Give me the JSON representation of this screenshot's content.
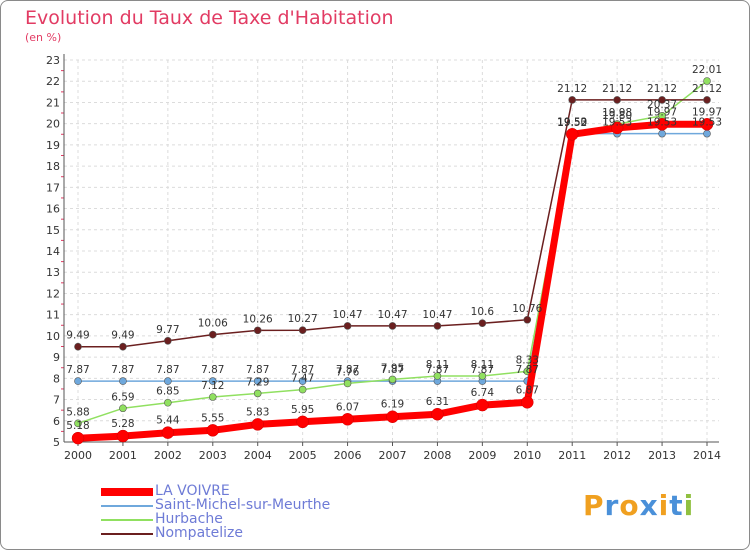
{
  "chart_data": {
    "type": "line",
    "title": "Evolution du Taux de Taxe d'Habitation",
    "unit": "(en %)",
    "x": [
      "2000",
      "2001",
      "2002",
      "2003",
      "2004",
      "2005",
      "2006",
      "2007",
      "2008",
      "2009",
      "2010",
      "2011",
      "2012",
      "2013",
      "2014"
    ],
    "ylim": [
      5,
      23
    ],
    "yticks": [
      5,
      6,
      7,
      8,
      9,
      10,
      11,
      12,
      13,
      14,
      15,
      16,
      17,
      18,
      19,
      20,
      21,
      22,
      23
    ],
    "grid": true,
    "legend_position": "bottom-left",
    "series": [
      {
        "name": "LA VOIVRE",
        "color": "#ff0000",
        "values": [
          5.18,
          5.28,
          5.44,
          5.55,
          5.83,
          5.95,
          6.07,
          6.19,
          6.31,
          6.74,
          6.87,
          19.5,
          19.8,
          19.97,
          19.97
        ],
        "labels": [
          "5.18",
          "5.28",
          "5.44",
          "5.55",
          "5.83",
          "5.95",
          "6.07",
          "6.19",
          "6.31",
          "6.74",
          "6.87",
          "19.50",
          "19.80",
          "19.97",
          "19.97"
        ]
      },
      {
        "name": "Saint-Michel-sur-Meurthe",
        "color": "#6fa8dc",
        "values": [
          7.87,
          7.87,
          7.87,
          7.87,
          7.87,
          7.87,
          7.87,
          7.87,
          7.87,
          7.87,
          7.87,
          19.53,
          19.53,
          19.53,
          19.53
        ],
        "labels": [
          "7.87",
          "7.87",
          "7.87",
          "7.87",
          "7.87",
          "7.87",
          "7.87",
          "7.87",
          "7.87",
          "7.87",
          "7.87",
          "19.53",
          "19.53",
          "19.53",
          "19.53"
        ]
      },
      {
        "name": "Hurbache",
        "color": "#90e060",
        "values": [
          5.88,
          6.59,
          6.85,
          7.12,
          7.29,
          7.47,
          7.76,
          7.95,
          8.11,
          8.11,
          8.33,
          19.52,
          19.98,
          20.37,
          22.01
        ],
        "labels": [
          "5.88",
          "6.59",
          "6.85",
          "7.12",
          "7.29",
          "7.47",
          "7.76",
          "7.95",
          "8.11",
          "8.11",
          "8.33",
          "19.52",
          "19.98",
          "20.37",
          "22.01"
        ]
      },
      {
        "name": "Nompatelize",
        "color": "#6b1f1f",
        "values": [
          9.49,
          9.49,
          9.77,
          10.06,
          10.26,
          10.27,
          10.47,
          10.47,
          10.47,
          10.6,
          10.76,
          21.12,
          21.12,
          21.12,
          21.12
        ],
        "labels": [
          "9.49",
          "9.49",
          "9.77",
          "10.06",
          "10.26",
          "10.27",
          "10.47",
          "10.47",
          "10.47",
          "10.6",
          "10.76",
          "21.12",
          "21.12",
          "21.12",
          "21.12"
        ]
      }
    ]
  },
  "legend": [
    {
      "label": "LA VOIVRE",
      "color": "#ff0000"
    },
    {
      "label": "Saint-Michel-sur-Meurthe",
      "color": "#6fa8dc"
    },
    {
      "label": "Hurbache",
      "color": "#90e060"
    },
    {
      "label": "Nompatelize",
      "color": "#6b1f1f"
    }
  ],
  "logo": {
    "text": "Proxiti",
    "colors": [
      "#f0a020",
      "#4a90d9",
      "#f0a020",
      "#4a90d9",
      "#f0a020",
      "#4a90d9",
      "#90c040"
    ]
  }
}
